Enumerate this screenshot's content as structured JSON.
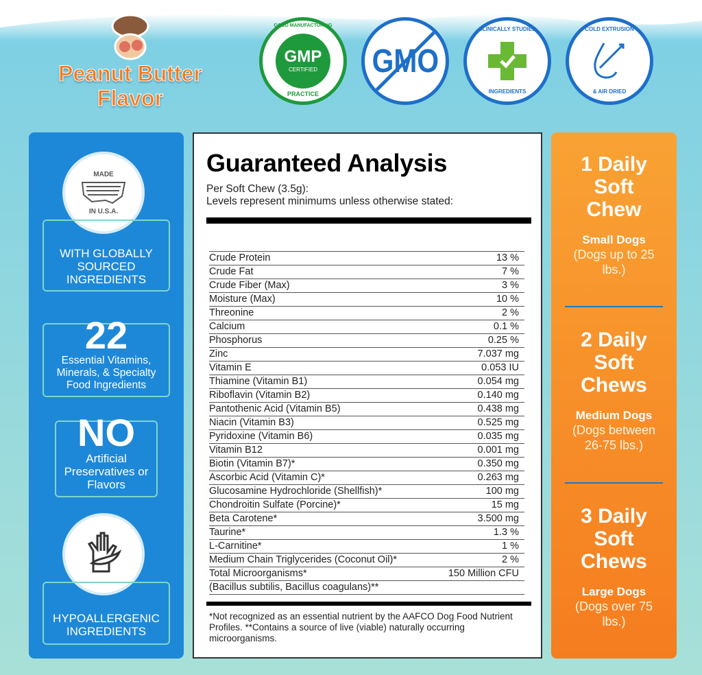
{
  "flavor": {
    "line1": "Peanut Butter",
    "line2": "Flavor"
  },
  "badges": [
    {
      "name": "gmp",
      "top": "GOOD MANUFACTURING",
      "center": "GMP",
      "center_sub": "CERTIFIED",
      "bottom": "PRACTICE",
      "color": "#1e9a3c"
    },
    {
      "name": "non-gmo",
      "center": "GMO",
      "color": "#1e6fc8"
    },
    {
      "name": "clinically-studied",
      "top": "CLINICALLY STUDIED",
      "bottom": "INGREDIENTS",
      "color": "#1e6fc8",
      "accent": "#6ab934"
    },
    {
      "name": "cold-extrusion",
      "top": "COLD EXTRUSION",
      "bottom": "& AIR DRIED",
      "color": "#1e6fc8"
    }
  ],
  "left_panel": {
    "made_seal": {
      "top": "MADE",
      "bottom": "IN U.S.A."
    },
    "sourced": "WITH GLOBALLY SOURCED INGREDIENTS",
    "count": "22",
    "count_text": "Essential Vitamins, Minerals, & Specialty Food Ingredients",
    "no": "NO",
    "no_text": "Artificial Preservatives or Flavors",
    "hypo": "HYPOALLERGENIC INGREDIENTS"
  },
  "analysis": {
    "title": "Guaranteed Analysis",
    "sub1": "Per Soft Chew (3.5g):",
    "sub2": "Levels represent minimums unless otherwise stated:",
    "rows": [
      [
        "Crude Protein",
        "13 %"
      ],
      [
        "Crude Fat",
        "7 %"
      ],
      [
        "Crude Fiber (Max)",
        "3 %"
      ],
      [
        "Moisture (Max)",
        "10 %"
      ],
      [
        "Threonine",
        "2 %"
      ],
      [
        "Calcium",
        "0.1 %"
      ],
      [
        "Phosphorus",
        "0.25 %"
      ],
      [
        "Zinc",
        "7.037 mg"
      ],
      [
        "Vitamin E",
        "0.053 IU"
      ],
      [
        "Thiamine (Vitamin B1)",
        "0.054 mg"
      ],
      [
        "Riboflavin (Vitamin B2)",
        "0.140 mg"
      ],
      [
        "Pantothenic Acid (Vitamin B5)",
        "0.438 mg"
      ],
      [
        "Niacin (Vitamin B3)",
        "0.525 mg"
      ],
      [
        "Pyridoxine (Vitamin B6)",
        "0.035 mg"
      ],
      [
        "Vitamin B12",
        "0.001 mg"
      ],
      [
        "Biotin (Vitamin B7)*",
        "0.350 mg"
      ],
      [
        "Ascorbic Acid (Vitamin C)*",
        "0.263 mg"
      ],
      [
        "Glucosamine Hydrochloride (Shellfish)*",
        "100 mg"
      ],
      [
        "Chondroitin Sulfate (Porcine)*",
        "15 mg"
      ],
      [
        "Beta Carotene*",
        "3.500 mg"
      ],
      [
        "Taurine*",
        "1.3 %"
      ],
      [
        "L-Carnitine*",
        "1 %"
      ],
      [
        "Medium Chain Triglycerides (Coconut Oil)*",
        "2 %"
      ],
      [
        "Total Microorganisms*",
        "150 Million CFU"
      ],
      [
        "(Bacillus subtilis, Bacillus coagulans)**",
        ""
      ]
    ],
    "footnote": "*Not recognized as an essential nutrient by the AAFCO Dog Food Nutrient Profiles. **Contains a source of live (viable) naturally occurring microorganisms."
  },
  "dosage": [
    {
      "heading": "1 Daily Soft Chew",
      "size": "Small Dogs",
      "detail": "(Dogs up to 25 lbs.)"
    },
    {
      "heading": "2 Daily Soft Chews",
      "size": "Medium Dogs",
      "detail": "(Dogs between 26-75 lbs.)"
    },
    {
      "heading": "3 Daily Soft Chews",
      "size": "Large Dogs",
      "detail": "(Dogs over 75 lbs.)"
    }
  ]
}
